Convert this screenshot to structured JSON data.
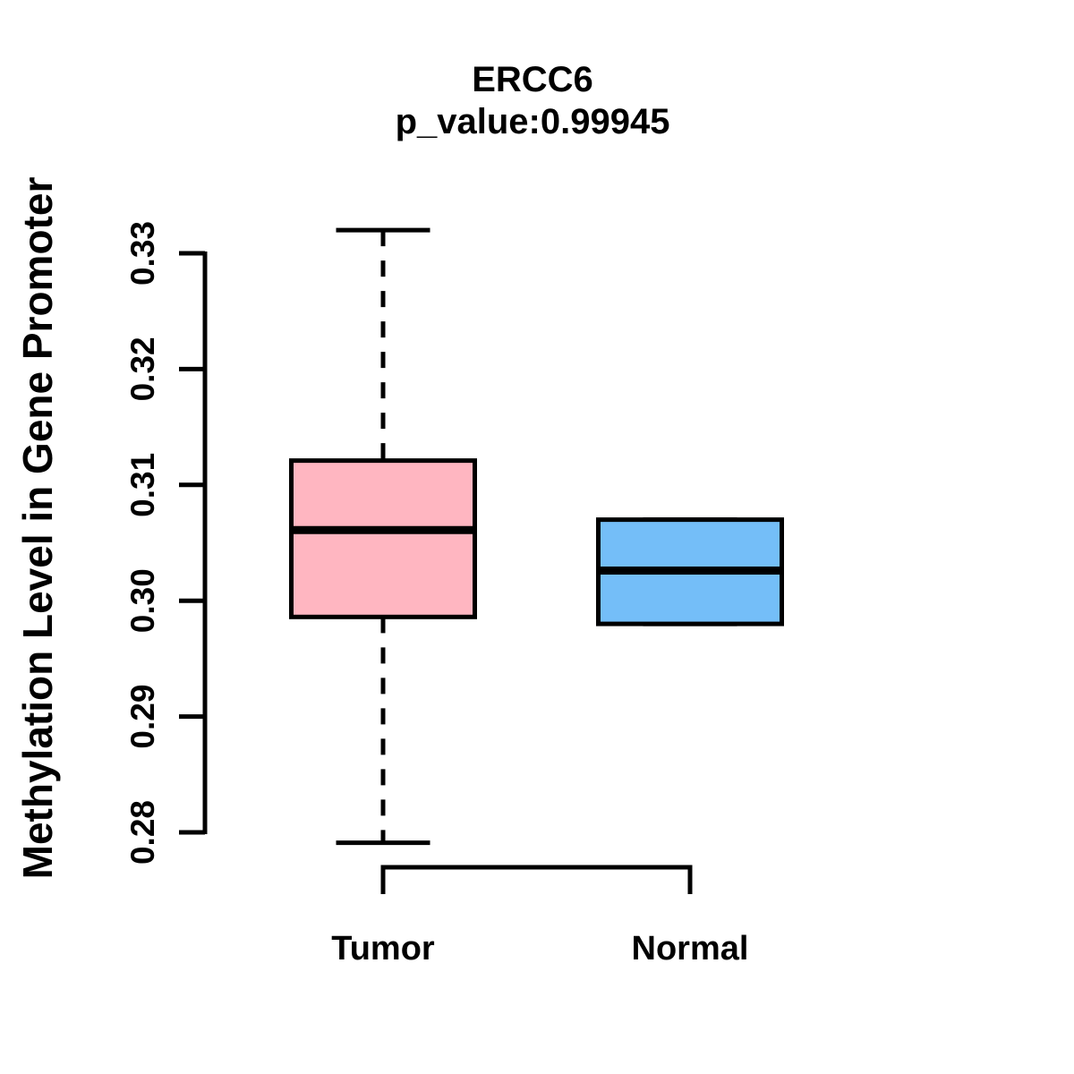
{
  "chart_data": {
    "type": "boxplot",
    "title": "ERCC6",
    "subtitle": "p_value:0.99945",
    "p_value": 0.99945,
    "ylabel": "Methylation Level in Gene Promoter",
    "xlabel": "",
    "categories": [
      "Tumor",
      "Normal"
    ],
    "yticks": [
      0.33,
      0.32,
      0.31,
      0.3,
      0.29,
      0.28
    ],
    "ytick_labels": [
      "0.33",
      "0.32",
      "0.31",
      "0.30",
      "0.29",
      "0.28"
    ],
    "ylim": [
      0.28,
      0.33
    ],
    "grid": false,
    "legend": "none",
    "series": [
      {
        "name": "Tumor",
        "color": "#FFB6C1",
        "whisker_low": 0.2791,
        "q1": 0.2986,
        "median": 0.3061,
        "q3": 0.3121,
        "whisker_high": 0.332
      },
      {
        "name": "Normal",
        "color": "#74BEF8",
        "whisker_low": 0.298,
        "q1": 0.298,
        "median": 0.3026,
        "q3": 0.307,
        "whisker_high": 0.307
      }
    ],
    "line_color": "#000000",
    "background_color": "#FFFFFF"
  }
}
